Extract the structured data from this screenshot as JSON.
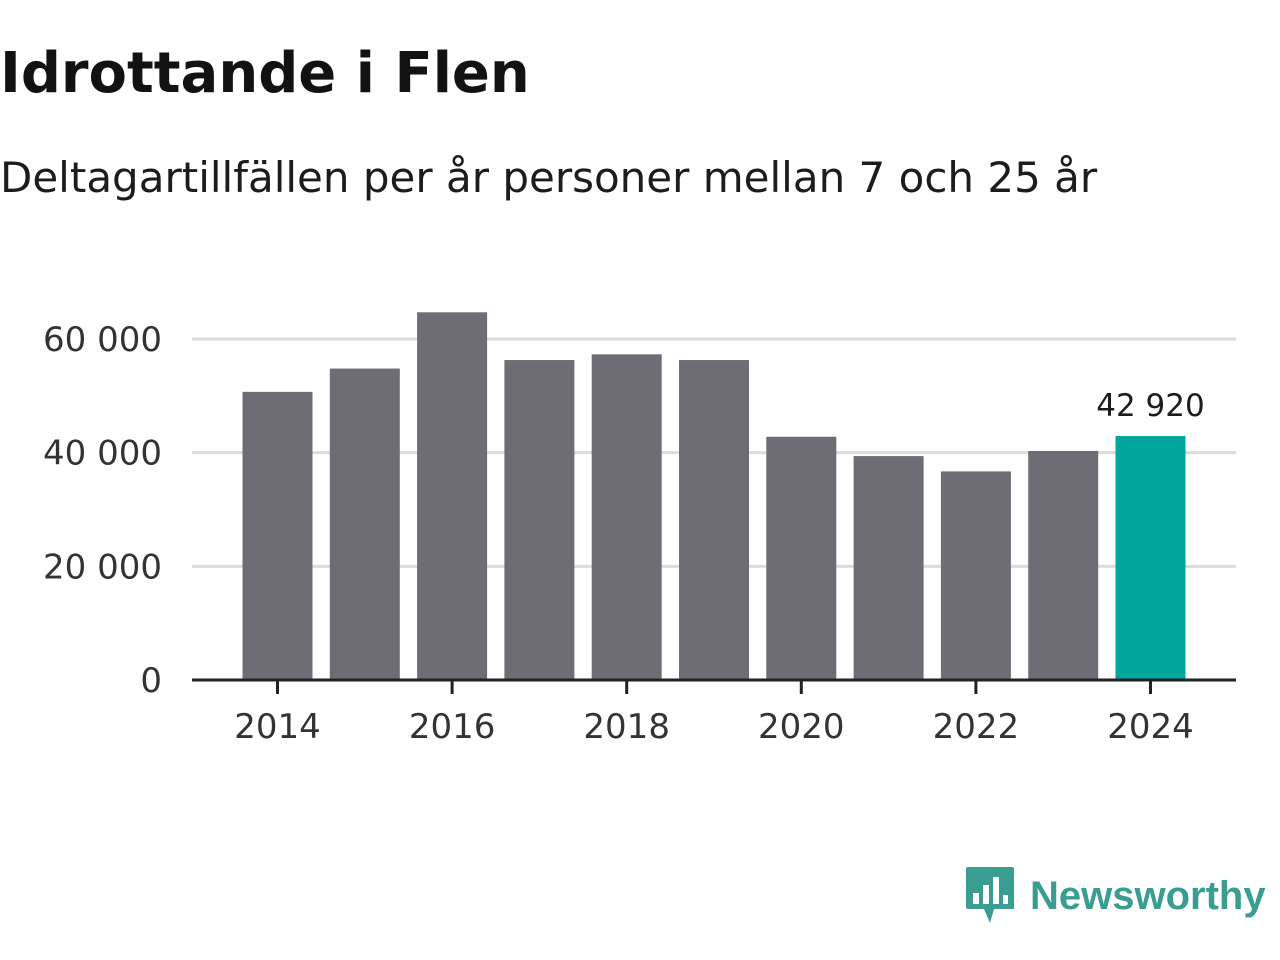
{
  "title": "Idrottande i Flen",
  "subtitle": "Deltagartillfällen per år personer mellan 7 och 25 år",
  "brand": {
    "name": "Newsworthy",
    "color": "#3a9d92",
    "icon": "newsworthy-logo-icon"
  },
  "colors": {
    "bar": "#6e6d75",
    "highlight": "#00a69c",
    "grid": "#dcdcdc",
    "axis": "#222222"
  },
  "chart_data": {
    "type": "bar",
    "title": "Idrottande i Flen",
    "subtitle": "Deltagartillfällen per år personer mellan 7 och 25 år",
    "xlabel": "",
    "ylabel": "",
    "categories": [
      "2014",
      "2015",
      "2016",
      "2017",
      "2018",
      "2019",
      "2020",
      "2021",
      "2022",
      "2023",
      "2024"
    ],
    "values": [
      50700,
      54800,
      64700,
      56300,
      57300,
      56300,
      42800,
      39400,
      36700,
      40300,
      42920
    ],
    "highlight_index": 10,
    "data_label": {
      "category": "2024",
      "text": "42 920"
    },
    "ylim": [
      0,
      65000
    ],
    "yticks": [
      0,
      20000,
      40000,
      60000
    ],
    "ytick_labels": [
      "0",
      "20 000",
      "40 000",
      "60 000"
    ],
    "xticks": [
      "2014",
      "2016",
      "2018",
      "2020",
      "2022",
      "2024"
    ],
    "grid": true,
    "legend": "none"
  }
}
